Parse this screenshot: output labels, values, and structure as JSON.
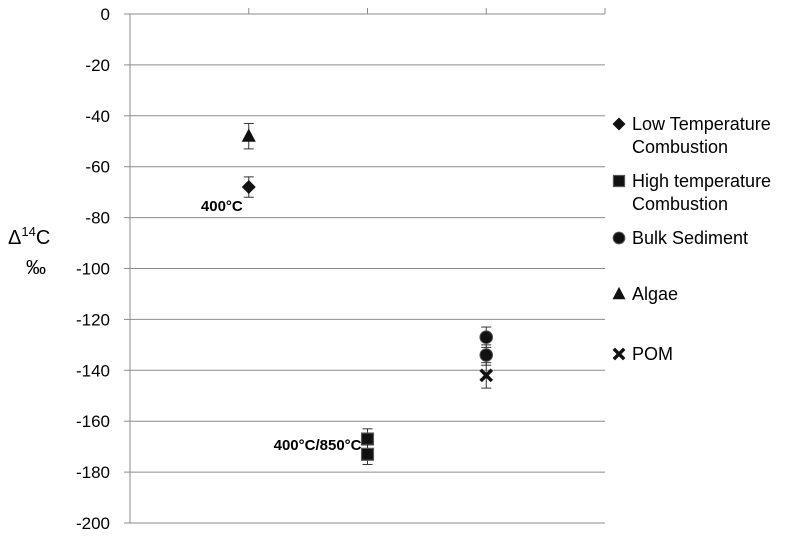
{
  "chart_data": {
    "type": "scatter",
    "title": "",
    "xlabel": "",
    "ylabel": "Δ14C ‰",
    "ylabel_parts": {
      "delta": "Δ",
      "sup": "14",
      "elem": "C",
      "unit": "‰"
    },
    "ylim": [
      -200,
      0
    ],
    "yticks": [
      0,
      -20,
      -40,
      -60,
      -80,
      -100,
      -120,
      -140,
      -160,
      -180,
      -200
    ],
    "xlim": [
      0,
      4
    ],
    "grid": "horizontal",
    "legend_position": "right",
    "series": [
      {
        "name": "Low Temperature Combustion",
        "name_lines": [
          "Low Temperature",
          "Combustion"
        ],
        "marker": "diamond",
        "points": [
          {
            "x": 1,
            "y": -68,
            "err": 4
          }
        ]
      },
      {
        "name": "High temperature Combustion",
        "name_lines": [
          "High temperature",
          "Combustion"
        ],
        "marker": "square",
        "points": [
          {
            "x": 2,
            "y": -167,
            "err": 4
          },
          {
            "x": 2,
            "y": -173,
            "err": 4
          }
        ]
      },
      {
        "name": "Bulk Sediment",
        "name_lines": [
          "Bulk Sediment"
        ],
        "marker": "circle",
        "points": [
          {
            "x": 3,
            "y": -127,
            "err": 4
          },
          {
            "x": 3,
            "y": -134,
            "err": 4
          }
        ]
      },
      {
        "name": "Algae",
        "name_lines": [
          "Algae"
        ],
        "marker": "triangle",
        "points": [
          {
            "x": 1,
            "y": -48,
            "err": 5
          }
        ]
      },
      {
        "name": "POM",
        "name_lines": [
          "POM"
        ],
        "marker": "x",
        "points": [
          {
            "x": 3,
            "y": -142,
            "err": 5
          }
        ]
      }
    ],
    "annotations": [
      {
        "text": "400°C",
        "x": 1,
        "y": -75
      },
      {
        "text": "400°C/850°C",
        "x": 2,
        "y": -169
      }
    ]
  }
}
